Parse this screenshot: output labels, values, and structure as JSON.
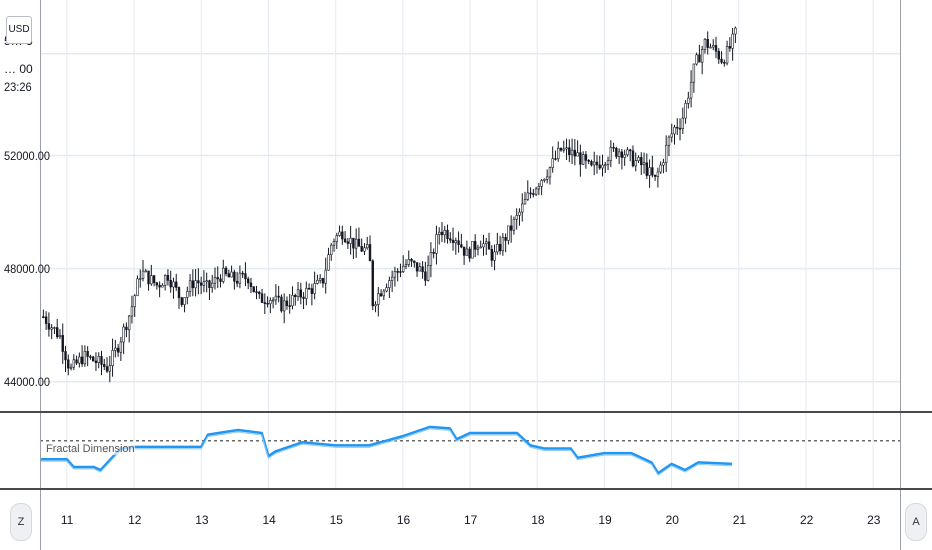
{
  "currency_badge": "USD",
  "top_price_partial": "5… 5",
  "top_price_partial2": "… 00",
  "countdown": "23:26",
  "corner_left": "Z",
  "corner_right": "A",
  "indicator_name": "Fractal Dimension",
  "colors": {
    "candle": "#131722",
    "indicator": "#2196f3",
    "grid": "#e4eaf2",
    "separator": "#4a4a4a"
  },
  "chart_data": [
    {
      "type": "candlestick",
      "title": "",
      "xlabel": "",
      "ylabel": "",
      "x_tick_labels": [
        "11",
        "12",
        "13",
        "14",
        "15",
        "16",
        "17",
        "18",
        "19",
        "20",
        "21",
        "22",
        "23"
      ],
      "y_tick_labels": [
        "44000.00",
        "48000.00",
        "52000.00"
      ],
      "y_ticks": [
        44000,
        48000,
        52000
      ],
      "ylim": [
        43000,
        57500
      ],
      "xlim": [
        10.6,
        23.4
      ],
      "grid": true,
      "close_anchors": {
        "x": [
          10.65,
          10.9,
          11.05,
          11.25,
          11.45,
          11.6,
          11.75,
          11.95,
          12.1,
          12.35,
          12.5,
          12.7,
          12.9,
          13.1,
          13.3,
          13.5,
          13.7,
          13.85,
          14.0,
          14.2,
          14.5,
          14.8,
          14.95,
          15.1,
          15.3,
          15.5,
          15.55,
          15.75,
          16.0,
          16.1,
          16.35,
          16.55,
          16.8,
          16.95,
          17.15,
          17.35,
          17.5,
          17.7,
          17.85,
          18.0,
          18.2,
          18.35,
          18.6,
          18.8,
          18.95,
          19.1,
          19.25,
          19.45,
          19.6,
          19.75,
          19.85,
          19.95,
          20.05,
          20.15,
          20.35,
          20.5,
          20.65,
          20.75,
          20.85,
          20.95
        ],
        "y": [
          46300,
          45600,
          44400,
          44900,
          44700,
          44500,
          45200,
          46500,
          47900,
          47400,
          47800,
          46900,
          47600,
          47300,
          47800,
          47600,
          47700,
          46900,
          47000,
          46700,
          47100,
          47500,
          49000,
          49300,
          48800,
          48600,
          46800,
          47500,
          48100,
          48200,
          47800,
          49400,
          49100,
          48500,
          49000,
          48400,
          49000,
          49800,
          50500,
          51000,
          51600,
          52200,
          52000,
          51500,
          51800,
          52100,
          52200,
          51800,
          51600,
          51100,
          51700,
          52500,
          53000,
          53200,
          55200,
          56000,
          55700,
          55400,
          55700,
          56300
        ],
        "note": "approximate close prices read from candlestick chart; daily x units (date)"
      }
    },
    {
      "type": "line",
      "title": "",
      "series": [
        {
          "name": "Fractal Dimension",
          "x": [
            10.6,
            11.0,
            11.1,
            11.4,
            11.5,
            11.8,
            12.0,
            13.0,
            13.1,
            13.4,
            13.55,
            13.9,
            14.0,
            14.1,
            14.5,
            15.0,
            15.5,
            16.0,
            16.2,
            16.4,
            16.7,
            16.8,
            17.0,
            17.7,
            17.9,
            18.1,
            18.5,
            18.6,
            19.0,
            19.4,
            19.7,
            19.8,
            20.0,
            20.2,
            20.4,
            20.9
          ],
          "y": [
            1.38,
            1.38,
            1.33,
            1.33,
            1.31,
            1.45,
            1.46,
            1.46,
            1.54,
            1.56,
            1.57,
            1.55,
            1.4,
            1.43,
            1.49,
            1.47,
            1.47,
            1.53,
            1.56,
            1.59,
            1.58,
            1.51,
            1.55,
            1.55,
            1.47,
            1.45,
            1.45,
            1.39,
            1.42,
            1.42,
            1.36,
            1.29,
            1.35,
            1.31,
            1.36,
            1.35
          ]
        }
      ],
      "reference_line": 1.5,
      "ylim": [
        1.2,
        1.68
      ]
    }
  ]
}
